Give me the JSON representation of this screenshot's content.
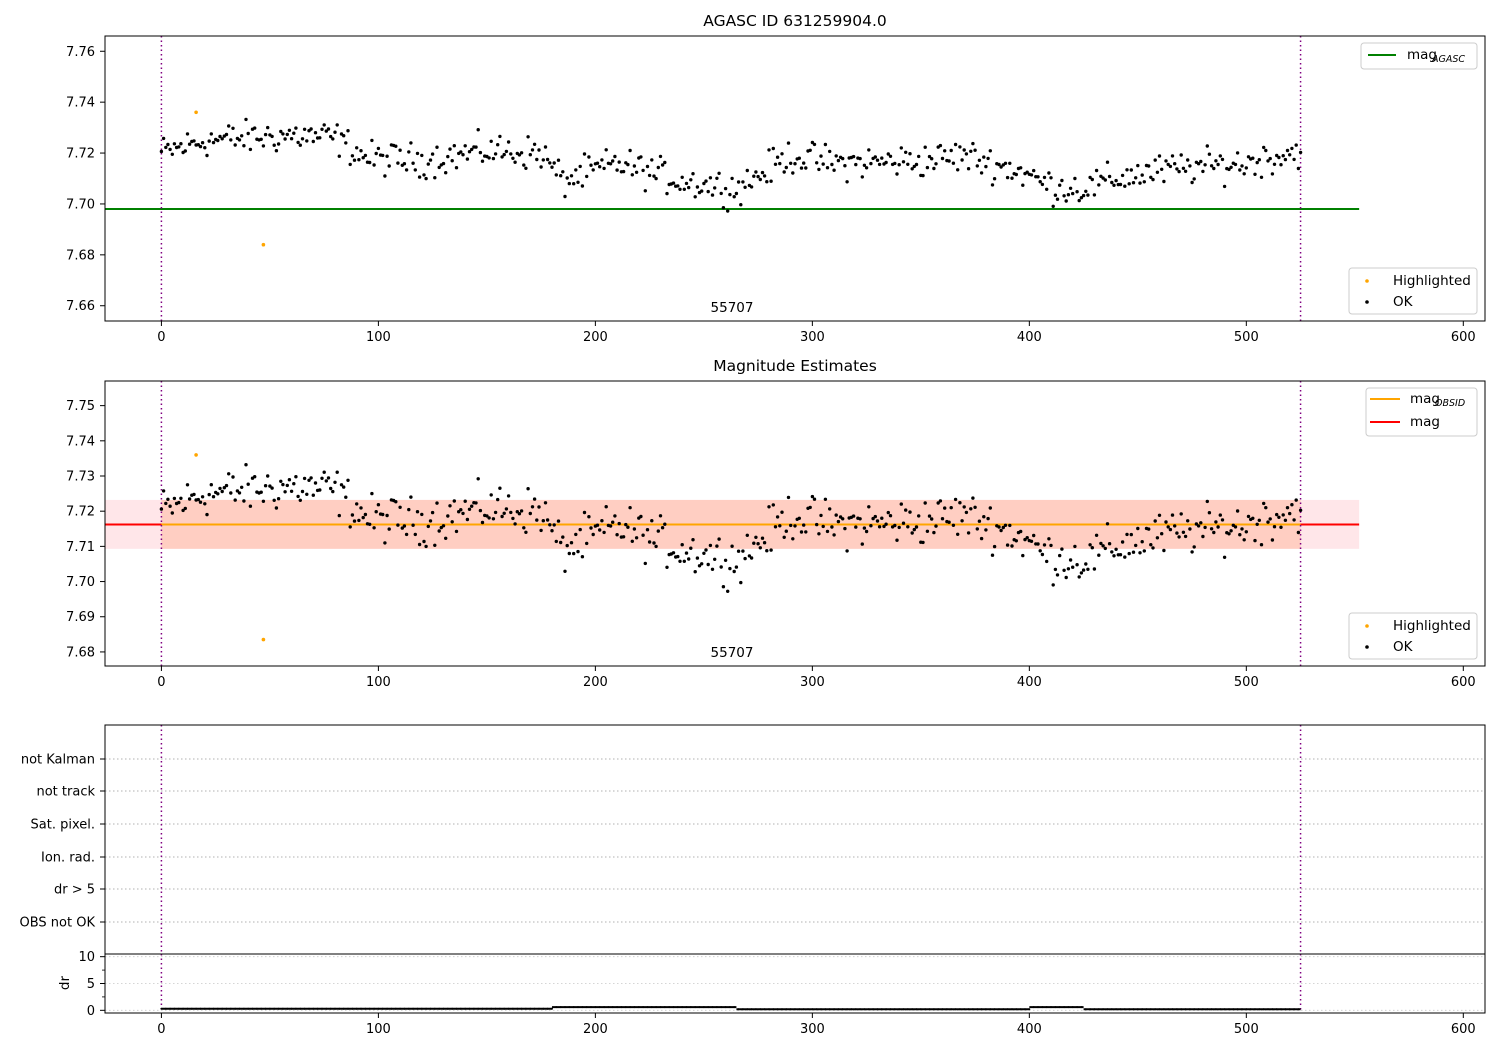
{
  "chart_data": [
    {
      "type": "scatter",
      "title": "AGASC ID 631259904.0",
      "xlim": [
        -26,
        610
      ],
      "ylim": [
        7.654,
        7.766
      ],
      "x_ticks": [
        0,
        100,
        200,
        300,
        400,
        500,
        600
      ],
      "y_ticks": [
        7.66,
        7.68,
        7.7,
        7.72,
        7.74,
        7.76
      ],
      "y_tick_labels": [
        "7.66",
        "7.68",
        "7.70",
        "7.72",
        "7.74",
        "7.76"
      ],
      "vlines": [
        0,
        525
      ],
      "annotation": "55707",
      "lines": [
        {
          "name": "mag",
          "subscript": "AGASC",
          "y": 7.698,
          "x_range": [
            -26,
            552
          ],
          "color": "#008000"
        }
      ],
      "series": [
        {
          "name": "Highlighted",
          "color": "#ffa500",
          "points": [
            [
              16,
              7.736
            ],
            [
              47,
              7.684
            ]
          ]
        },
        {
          "name": "OK",
          "color": "#000000",
          "generated_from": "ok_trend"
        }
      ],
      "legend": [
        {
          "placement": "top-right",
          "entries": [
            {
              "kind": "line",
              "label": "mag",
              "sub": "AGASC",
              "color": "#008000"
            }
          ]
        },
        {
          "placement": "bottom-right",
          "entries": [
            {
              "kind": "dot",
              "label": "Highlighted",
              "color": "#ffa500"
            },
            {
              "kind": "dot",
              "label": "OK",
              "color": "#000000"
            }
          ]
        }
      ]
    },
    {
      "type": "scatter",
      "title": "Magnitude Estimates",
      "xlim": [
        -26,
        610
      ],
      "ylim": [
        7.676,
        7.757
      ],
      "x_ticks": [
        0,
        100,
        200,
        300,
        400,
        500,
        600
      ],
      "y_ticks": [
        7.68,
        7.69,
        7.7,
        7.71,
        7.72,
        7.73,
        7.74,
        7.75
      ],
      "y_tick_labels": [
        "7.68",
        "7.69",
        "7.70",
        "7.71",
        "7.72",
        "7.73",
        "7.74",
        "7.75"
      ],
      "vlines": [
        0,
        525
      ],
      "annotation": "55707",
      "bands": [
        {
          "y_range": [
            7.7093,
            7.7232
          ],
          "x_range": [
            -26,
            552
          ],
          "color": "#ffb6c1",
          "opacity": 0.35
        },
        {
          "y_range": [
            7.7093,
            7.7232
          ],
          "x_range": [
            0,
            525
          ],
          "color": "#ffa07a",
          "opacity": 0.35
        }
      ],
      "lines": [
        {
          "name": "mag",
          "y": 7.7162,
          "x_range": [
            -26,
            552
          ],
          "color": "#ff0000"
        },
        {
          "name": "mag",
          "subscript": "OBSID",
          "y": 7.7162,
          "x_range": [
            0,
            525
          ],
          "color": "#ffa500"
        }
      ],
      "series": [
        {
          "name": "Highlighted",
          "color": "#ffa500",
          "points": [
            [
              16,
              7.736
            ],
            [
              47,
              7.6835
            ]
          ]
        },
        {
          "name": "OK",
          "color": "#000000",
          "generated_from": "ok_trend"
        }
      ],
      "legend": [
        {
          "placement": "top-right",
          "entries": [
            {
              "kind": "line",
              "label": "mag",
              "sub": "OBSID",
              "color": "#ffa500"
            },
            {
              "kind": "line",
              "label": "mag",
              "color": "#ff0000"
            }
          ]
        },
        {
          "placement": "bottom-right",
          "entries": [
            {
              "kind": "dot",
              "label": "Highlighted",
              "color": "#ffa500"
            },
            {
              "kind": "dot",
              "label": "OK",
              "color": "#000000"
            }
          ]
        }
      ]
    },
    {
      "type": "scatter",
      "xlim": [
        -26,
        610
      ],
      "categories": [
        "not Kalman",
        "not track",
        "Sat. pixel.",
        "Ion. rad.",
        "dr > 5",
        "OBS not OK"
      ],
      "vlines": [
        0,
        525
      ],
      "grid": "horizontal dotted"
    },
    {
      "type": "line",
      "ylabel": "dr",
      "xlim": [
        -26,
        610
      ],
      "ylim": [
        -0.5,
        10.5
      ],
      "x_ticks": [
        0,
        100,
        200,
        300,
        400,
        500,
        600
      ],
      "y_ticks": [
        0,
        5,
        10
      ],
      "y_tick_labels": [
        "0",
        "5",
        "10"
      ],
      "vlines": [
        0,
        525
      ],
      "series": [
        {
          "name": "dr",
          "color": "#000000",
          "segments": [
            {
              "x": [
                0,
                180
              ],
              "y": 0.3
            },
            {
              "x": [
                180,
                265
              ],
              "y": 0.6
            },
            {
              "x": [
                265,
                400
              ],
              "y": 0.2
            },
            {
              "x": [
                400,
                425
              ],
              "y": 0.6
            },
            {
              "x": [
                425,
                525
              ],
              "y": 0.2
            }
          ]
        }
      ]
    }
  ],
  "ok_trend": [
    [
      0,
      7.72
    ],
    [
      20,
      7.725
    ],
    [
      40,
      7.726
    ],
    [
      60,
      7.727
    ],
    [
      80,
      7.726
    ],
    [
      95,
      7.718
    ],
    [
      120,
      7.717
    ],
    [
      150,
      7.721
    ],
    [
      175,
      7.72
    ],
    [
      185,
      7.709
    ],
    [
      210,
      7.716
    ],
    [
      240,
      7.709
    ],
    [
      265,
      7.706
    ],
    [
      290,
      7.719
    ],
    [
      310,
      7.716
    ],
    [
      350,
      7.717
    ],
    [
      370,
      7.719
    ],
    [
      395,
      7.713
    ],
    [
      410,
      7.707
    ],
    [
      425,
      7.706
    ],
    [
      445,
      7.711
    ],
    [
      470,
      7.714
    ],
    [
      500,
      7.716
    ],
    [
      525,
      7.721
    ]
  ]
}
